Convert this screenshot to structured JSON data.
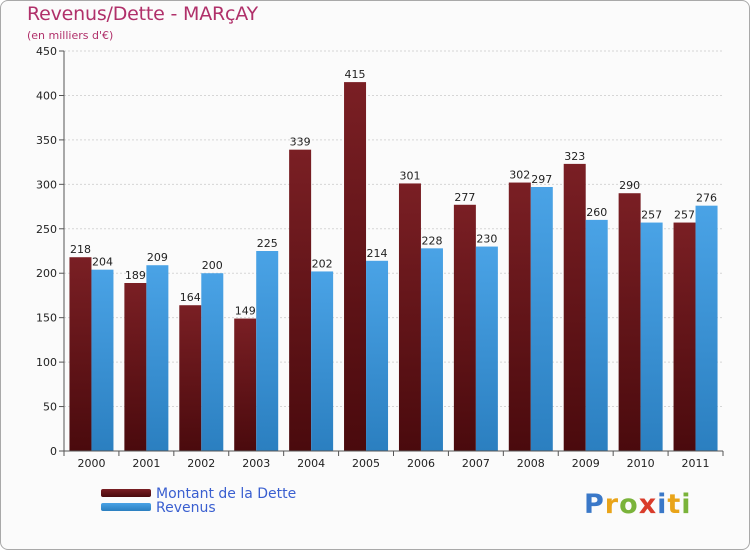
{
  "title": "Revenus/Dette - MARçAY",
  "subtitle": "(en milliers d'€)",
  "colors": {
    "dette": "#7a1f24",
    "dette_dark": "#4a0a0d",
    "revenus": "#4aa3e6",
    "revenus_dark": "#2b7fc0",
    "title": "#b0306a",
    "legend_text": "#3a5fd0"
  },
  "chart_data": {
    "type": "bar",
    "categories": [
      "2000",
      "2001",
      "2002",
      "2003",
      "2004",
      "2005",
      "2006",
      "2007",
      "2008",
      "2009",
      "2010",
      "2011"
    ],
    "series": [
      {
        "name": "Montant de la Dette",
        "values": [
          218,
          189,
          164,
          149,
          339,
          415,
          301,
          277,
          302,
          323,
          290,
          257
        ]
      },
      {
        "name": "Revenus",
        "values": [
          204,
          209,
          200,
          225,
          202,
          214,
          228,
          230,
          297,
          260,
          257,
          276
        ]
      }
    ],
    "ylim": [
      0,
      450
    ],
    "yticks": [
      0,
      50,
      100,
      150,
      200,
      250,
      300,
      350,
      400,
      450
    ],
    "grid": true,
    "legend_position": "bottom-left"
  },
  "legend": [
    {
      "label": "Montant de la Dette"
    },
    {
      "label": "Revenus"
    }
  ],
  "logo": {
    "letters": [
      "P",
      "r",
      "o",
      "x",
      "i",
      "t",
      "i"
    ],
    "colors": [
      "#3a78c8",
      "#e9a419",
      "#7ab33a",
      "#d93c2b",
      "#3a78c8",
      "#e9a419",
      "#7ab33a"
    ]
  }
}
